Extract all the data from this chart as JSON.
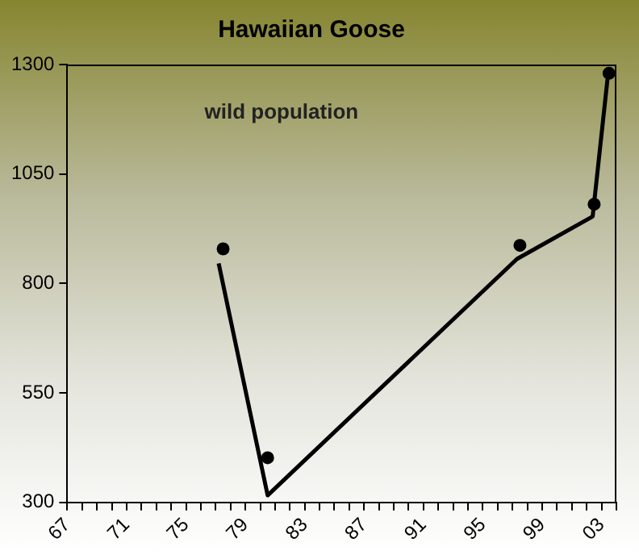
{
  "chart_data": {
    "type": "line",
    "title": "Hawaiian Goose",
    "annotations": [
      "wild population"
    ],
    "xlim": [
      1967,
      2004
    ],
    "xticks": [
      {
        "value": 1967,
        "label": "67"
      },
      {
        "value": 1968,
        "label": null
      },
      {
        "value": 1969,
        "label": null
      },
      {
        "value": 1970,
        "label": null
      },
      {
        "value": 1971,
        "label": "71"
      },
      {
        "value": 1972,
        "label": null
      },
      {
        "value": 1973,
        "label": null
      },
      {
        "value": 1974,
        "label": null
      },
      {
        "value": 1975,
        "label": "75"
      },
      {
        "value": 1976,
        "label": null
      },
      {
        "value": 1977,
        "label": null
      },
      {
        "value": 1978,
        "label": null
      },
      {
        "value": 1979,
        "label": "79"
      },
      {
        "value": 1980,
        "label": null
      },
      {
        "value": 1981,
        "label": null
      },
      {
        "value": 1982,
        "label": null
      },
      {
        "value": 1983,
        "label": "83"
      },
      {
        "value": 1984,
        "label": null
      },
      {
        "value": 1985,
        "label": null
      },
      {
        "value": 1986,
        "label": null
      },
      {
        "value": 1987,
        "label": "87"
      },
      {
        "value": 1988,
        "label": null
      },
      {
        "value": 1989,
        "label": null
      },
      {
        "value": 1990,
        "label": null
      },
      {
        "value": 1991,
        "label": "91"
      },
      {
        "value": 1992,
        "label": null
      },
      {
        "value": 1993,
        "label": null
      },
      {
        "value": 1994,
        "label": null
      },
      {
        "value": 1995,
        "label": "95"
      },
      {
        "value": 1996,
        "label": null
      },
      {
        "value": 1997,
        "label": null
      },
      {
        "value": 1998,
        "label": null
      },
      {
        "value": 1999,
        "label": "99"
      },
      {
        "value": 2000,
        "label": null
      },
      {
        "value": 2001,
        "label": null
      },
      {
        "value": 2002,
        "label": null
      },
      {
        "value": 2003,
        "label": "03"
      },
      {
        "value": 2004,
        "label": null
      }
    ],
    "ylim": [
      300,
      1300
    ],
    "yticks": [
      300,
      550,
      800,
      1050,
      1300
    ],
    "grid": false,
    "legend": false,
    "series": [
      {
        "type": "line",
        "color": "#000000",
        "marker": "none",
        "line_style": "solid",
        "x": [
          1977.2,
          1980.5,
          1997.3,
          2002.4,
          2003.4
        ],
        "values": [
          846,
          316,
          856,
          953,
          1267
        ]
      },
      {
        "type": "scatter",
        "color": "#000000",
        "marker": "circle",
        "x": [
          1977.5,
          1980.5,
          1997.5,
          2002.5,
          2003.5
        ],
        "values": [
          879,
          402,
          887,
          981,
          1280
        ]
      }
    ]
  }
}
